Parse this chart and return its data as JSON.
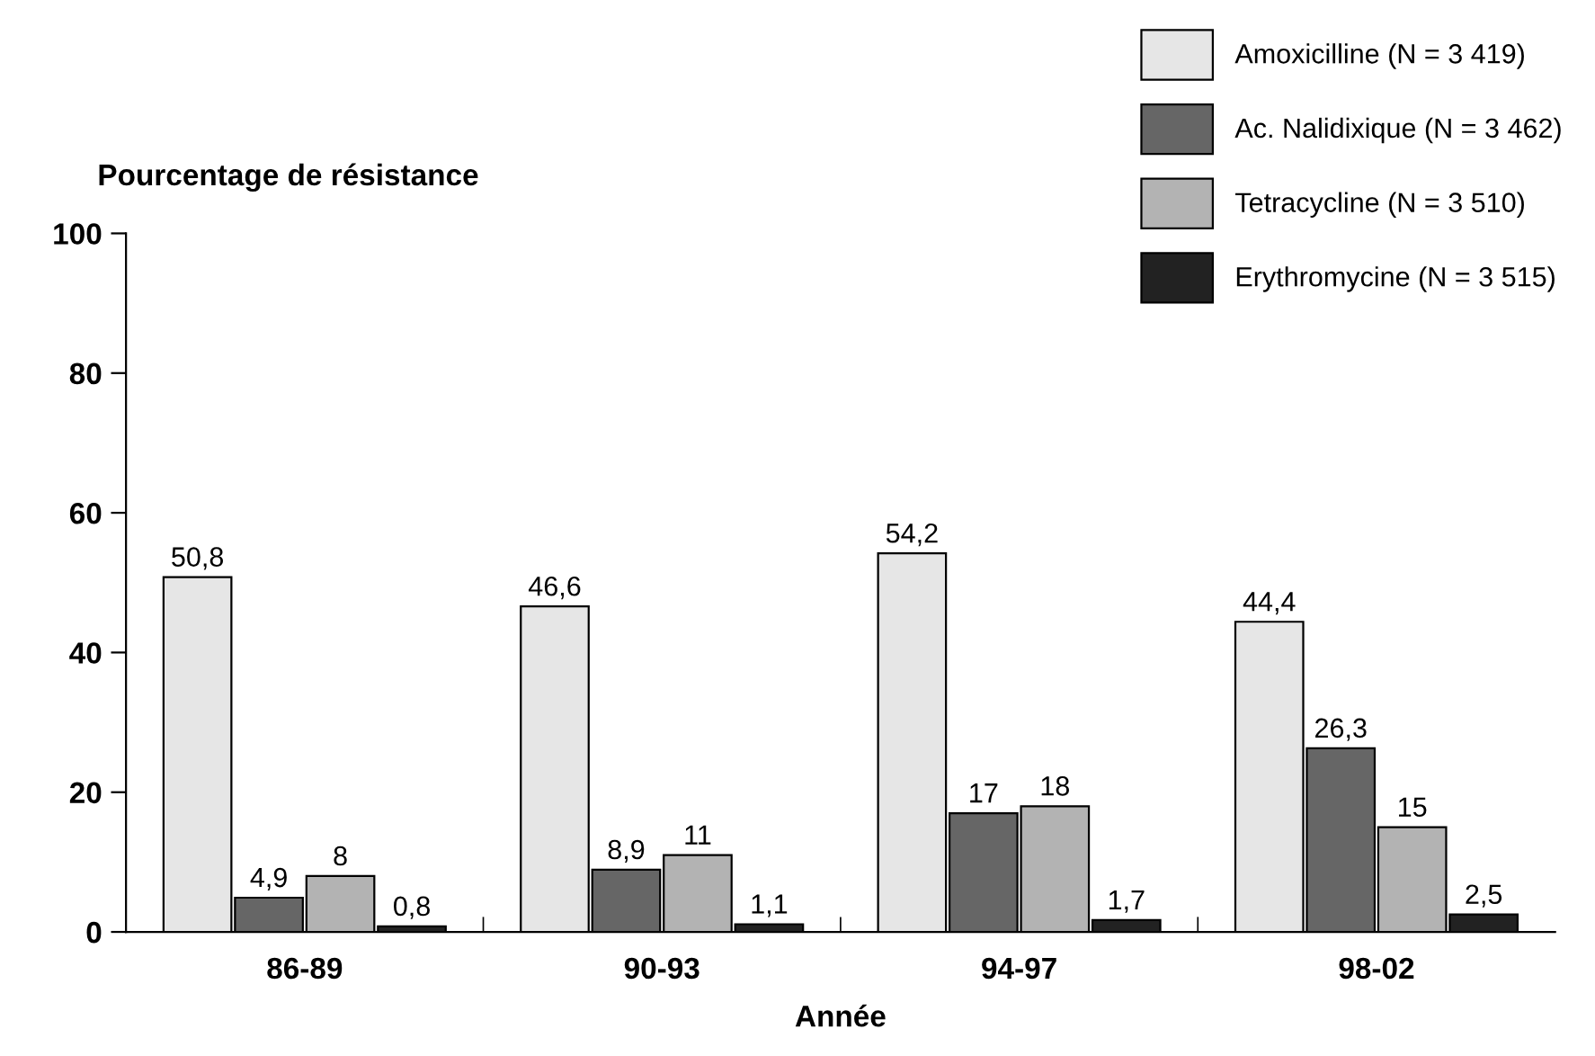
{
  "chart_data": {
    "type": "bar",
    "ylabel": "Pourcentage de résistance",
    "xlabel": "Année",
    "categories": [
      "86-89",
      "90-93",
      "94-97",
      "98-02"
    ],
    "series": [
      {
        "name": "Amoxicilline (N = 3 419)",
        "color": "#e6e6e6",
        "values": [
          50.8,
          46.6,
          54.2,
          44.4
        ],
        "value_labels": [
          "50,8",
          "46,6",
          "54,2",
          "44,4"
        ]
      },
      {
        "name": "Ac. Nalidixique (N = 3 462)",
        "color": "#666666",
        "values": [
          4.9,
          8.9,
          17,
          26.3
        ],
        "value_labels": [
          "4,9",
          "8,9",
          "17",
          "26,3"
        ]
      },
      {
        "name": "Tetracycline (N = 3 510)",
        "color": "#b3b3b3",
        "values": [
          8,
          11,
          18,
          15
        ],
        "value_labels": [
          "8",
          "11",
          "18",
          "15"
        ]
      },
      {
        "name": "Erythromycine (N = 3 515)",
        "color": "#222222",
        "values": [
          0.8,
          1.1,
          1.7,
          2.5
        ],
        "value_labels": [
          "0,8",
          "1,1",
          "1,7",
          "2,5"
        ]
      }
    ],
    "ylim": [
      0,
      100
    ],
    "yticks": [
      0,
      20,
      40,
      60,
      80,
      100
    ],
    "grid": false,
    "legend": "top right"
  }
}
